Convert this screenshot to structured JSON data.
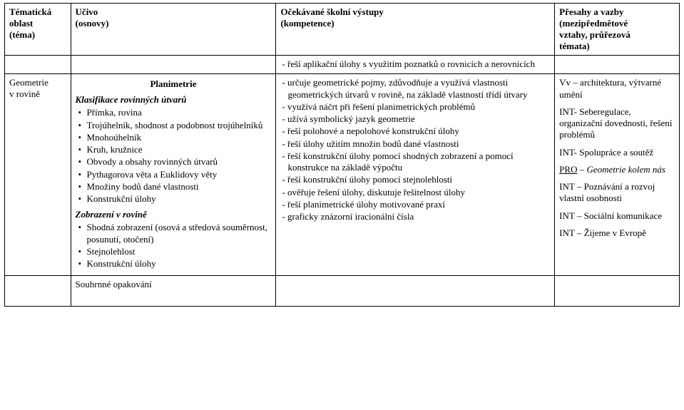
{
  "header": {
    "col1_line1": "Tématická",
    "col1_line2": "oblast",
    "col1_line3": "(téma)",
    "col2_line1": "Učivo",
    "col2_line2": "(osnovy)",
    "col3_line1": "Očekávané školní výstupy",
    "col3_line2": "(kompetence)",
    "col4_line1": "Přesahy a vazby",
    "col4_line2": "(mezipředmětové",
    "col4_line3": "vztahy, průřezová",
    "col4_line4": "témata)"
  },
  "row0": {
    "outcomes": [
      "- řeší aplikační úlohy s využitím poznatků o rovnicích a nerovnicích"
    ]
  },
  "row1": {
    "topic_line1": "Geometrie",
    "topic_line2": "v rovině",
    "section_title": "Planimetrie",
    "sub1": "Klasifikace rovinných útvarů",
    "bullets1": [
      "Přímka, rovina",
      "Trojúhelník, shodnost a podobnost trojúhelníků",
      "Mnohoúhelník",
      "Kruh, kružnice",
      "Obvody a obsahy rovinných útvarů",
      "Pythagorova věta a Euklidovy věty",
      "Množiny bodů dané vlastnosti",
      "Konstrukční úlohy"
    ],
    "sub2": "Zobrazení v rovině",
    "bullets2": [
      "Shodná zobrazení (osová a středová souměrnost, posunutí, otočení)",
      "Stejnolehlost",
      "Konstrukční úlohy"
    ],
    "outcomes": [
      "- určuje geometrické pojmy, zdůvodňuje a využívá vlastnosti geometrických útvarů v rovině, na základě vlastností třídí útvary",
      "- využívá náčrt při řešení planimetrických problémů",
      "- užívá symbolický jazyk geometrie",
      "- řeší polohové a nepolohové konstrukční úlohy",
      "- řeší úlohy užitím množin bodů dané vlastnosti",
      "- řeší konstrukční úlohy pomocí shodných zobrazení a pomocí konstrukce na základě výpočtu",
      "- řeší konstrukční úlohy pomocí stejnolehlosti",
      "- ověřuje řešení úlohy, diskutuje řešitelnost úlohy",
      "- řeší planimetrické úlohy motivované praxí",
      "- graficky znázorní iracionální čísla"
    ],
    "links": [
      "Vv – architektura, výtvarné umění",
      "INT- Seberegulace, organizační dovednosti, řešení problémů",
      "INT- Spolupráce a soutěž",
      "PRO – <i>Geometrie kolem nás</i>",
      "INT – Poznávání a rozvoj vlastní osobnosti",
      "INT – Sociální komunikace",
      "INT – Žijeme v Evropě"
    ]
  },
  "row2": {
    "summary": "Souhrnné opakování"
  }
}
